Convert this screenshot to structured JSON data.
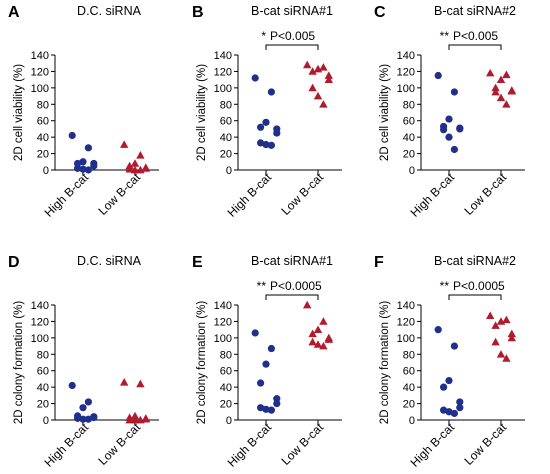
{
  "colors": {
    "high_marker": "#1f2f8c",
    "low_marker": "#b01c2e",
    "axis": "#000000"
  },
  "chart_data": [
    {
      "panel": "A",
      "type": "scatter",
      "title": "D.C. siRNA",
      "ylabel": "2D cell viability (%)",
      "categories": [
        "High B-cat",
        "Low B-cat"
      ],
      "ylim": [
        0,
        140
      ],
      "yticks": [
        0,
        20,
        40,
        60,
        80,
        100,
        120,
        140
      ],
      "annotation": null,
      "series": [
        {
          "category": "High B-cat",
          "marker": "circle",
          "values": [
            42,
            27,
            10,
            8,
            8,
            5,
            2,
            1,
            0
          ]
        },
        {
          "category": "Low B-cat",
          "marker": "triangle",
          "values": [
            31,
            18,
            8,
            5,
            3,
            2,
            1,
            0,
            0
          ]
        }
      ]
    },
    {
      "panel": "B",
      "type": "scatter",
      "title": "B-cat siRNA#1",
      "ylabel": "2D cell viability (%)",
      "categories": [
        "High B-cat",
        "Low B-cat"
      ],
      "ylim": [
        0,
        140
      ],
      "yticks": [
        0,
        20,
        40,
        60,
        80,
        100,
        120,
        140
      ],
      "annotation": {
        "stars": "*",
        "pvalue": "P<0.005"
      },
      "series": [
        {
          "category": "High B-cat",
          "marker": "circle",
          "values": [
            112,
            95,
            58,
            52,
            50,
            45,
            33,
            31,
            30
          ]
        },
        {
          "category": "Low B-cat",
          "marker": "triangle",
          "values": [
            128,
            125,
            123,
            120,
            115,
            110,
            100,
            90,
            80
          ]
        }
      ]
    },
    {
      "panel": "C",
      "type": "scatter",
      "title": "B-cat siRNA#2",
      "ylabel": "2D cell viability (%)",
      "categories": [
        "High B-cat",
        "Low B-cat"
      ],
      "ylim": [
        0,
        140
      ],
      "yticks": [
        0,
        20,
        40,
        60,
        80,
        100,
        120,
        140
      ],
      "annotation": {
        "stars": "**",
        "pvalue": "P<0.005"
      },
      "series": [
        {
          "category": "High B-cat",
          "marker": "circle",
          "values": [
            115,
            95,
            62,
            53,
            51,
            50,
            49,
            40,
            25
          ]
        },
        {
          "category": "Low B-cat",
          "marker": "triangle",
          "values": [
            118,
            116,
            110,
            100,
            97,
            96,
            95,
            88,
            80
          ]
        }
      ]
    },
    {
      "panel": "D",
      "type": "scatter",
      "title": "D.C. siRNA",
      "ylabel": "2D colony formation (%)",
      "categories": [
        "High B-cat",
        "Low B-cat"
      ],
      "ylim": [
        0,
        140
      ],
      "yticks": [
        0,
        20,
        40,
        60,
        80,
        100,
        120,
        140
      ],
      "annotation": null,
      "series": [
        {
          "category": "High B-cat",
          "marker": "circle",
          "values": [
            42,
            22,
            15,
            5,
            4,
            3,
            2,
            1,
            1
          ]
        },
        {
          "category": "Low B-cat",
          "marker": "triangle",
          "values": [
            46,
            44,
            5,
            3,
            2,
            1,
            0,
            0,
            0
          ]
        }
      ]
    },
    {
      "panel": "E",
      "type": "scatter",
      "title": "B-cat siRNA#1",
      "ylabel": "2D colony formation (%)",
      "categories": [
        "High B-cat",
        "Low B-cat"
      ],
      "ylim": [
        0,
        140
      ],
      "yticks": [
        0,
        20,
        40,
        60,
        80,
        100,
        120,
        140
      ],
      "annotation": {
        "stars": "**",
        "pvalue": "P<0.0005"
      },
      "series": [
        {
          "category": "High B-cat",
          "marker": "circle",
          "values": [
            106,
            87,
            68,
            45,
            26,
            20,
            15,
            13,
            12
          ]
        },
        {
          "category": "Low B-cat",
          "marker": "triangle",
          "values": [
            140,
            120,
            110,
            105,
            100,
            98,
            95,
            92,
            90
          ]
        }
      ]
    },
    {
      "panel": "F",
      "type": "scatter",
      "title": "B-cat siRNA#2",
      "ylabel": "2D colony formation (%)",
      "categories": [
        "High B-cat",
        "Low B-cat"
      ],
      "ylim": [
        0,
        140
      ],
      "yticks": [
        0,
        20,
        40,
        60,
        80,
        100,
        120,
        140
      ],
      "annotation": {
        "stars": "**",
        "pvalue": "P<0.0005"
      },
      "series": [
        {
          "category": "High B-cat",
          "marker": "circle",
          "values": [
            110,
            90,
            48,
            40,
            22,
            15,
            12,
            10,
            8
          ]
        },
        {
          "category": "Low B-cat",
          "marker": "triangle",
          "values": [
            127,
            122,
            120,
            115,
            105,
            100,
            95,
            80,
            75
          ]
        }
      ]
    }
  ]
}
